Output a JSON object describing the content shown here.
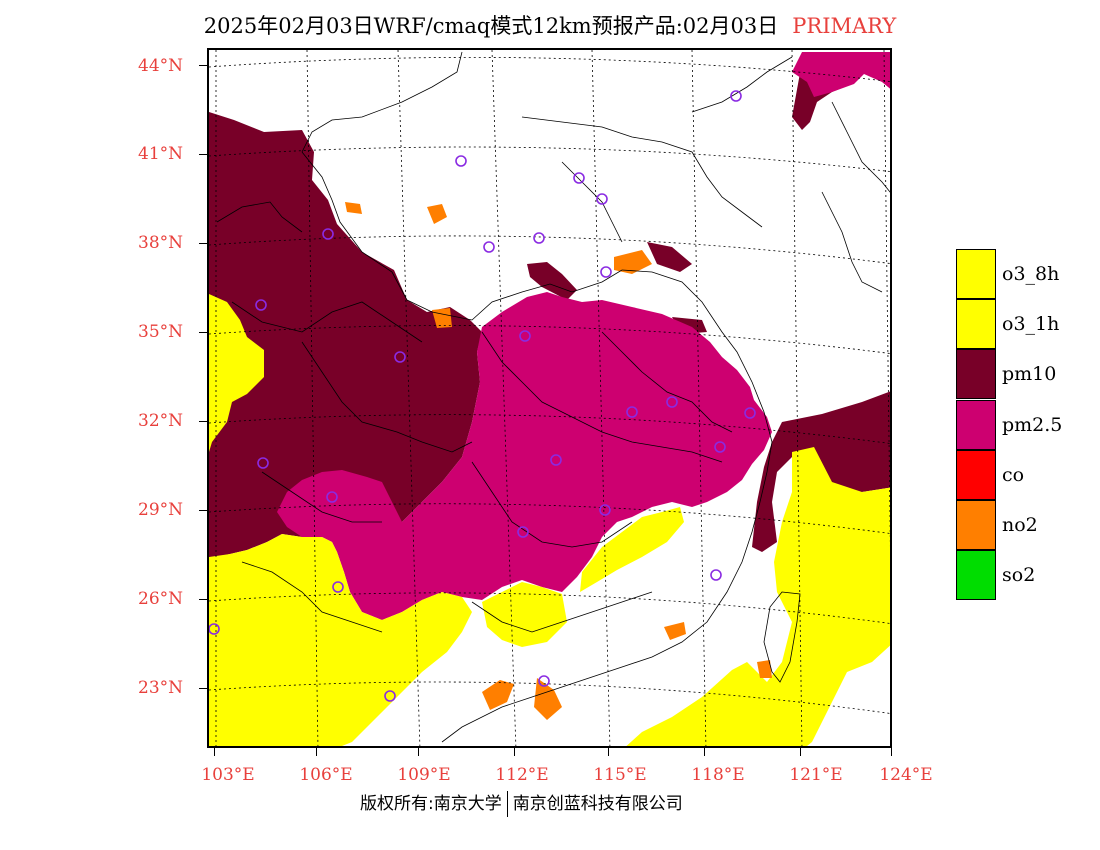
{
  "title": {
    "main": "2025年02月03日WRF/cmaq模式12km预报产品:02月03日",
    "tag": "PRIMARY"
  },
  "map": {
    "lat_labels": [
      "44°N",
      "41°N",
      "38°N",
      "35°N",
      "32°N",
      "29°N",
      "26°N",
      "23°N"
    ],
    "lon_labels": [
      "103°E",
      "106°E",
      "109°E",
      "112°E",
      "115°E",
      "118°E",
      "121°E",
      "124°E"
    ],
    "station_marker": "circle-icon"
  },
  "legend": {
    "items": [
      {
        "label": "o3_8h",
        "color": "#ffff00"
      },
      {
        "label": "o3_1h",
        "color": "#ffff00"
      },
      {
        "label": "pm10",
        "color": "#780028"
      },
      {
        "label": "pm2.5",
        "color": "#cd0070"
      },
      {
        "label": "co",
        "color": "#ff0000"
      },
      {
        "label": "no2",
        "color": "#ff7f00"
      },
      {
        "label": "so2",
        "color": "#00dd00"
      }
    ]
  },
  "footer": {
    "left": "版权所有:南京大学",
    "right": "南京创蓝科技有限公司"
  }
}
